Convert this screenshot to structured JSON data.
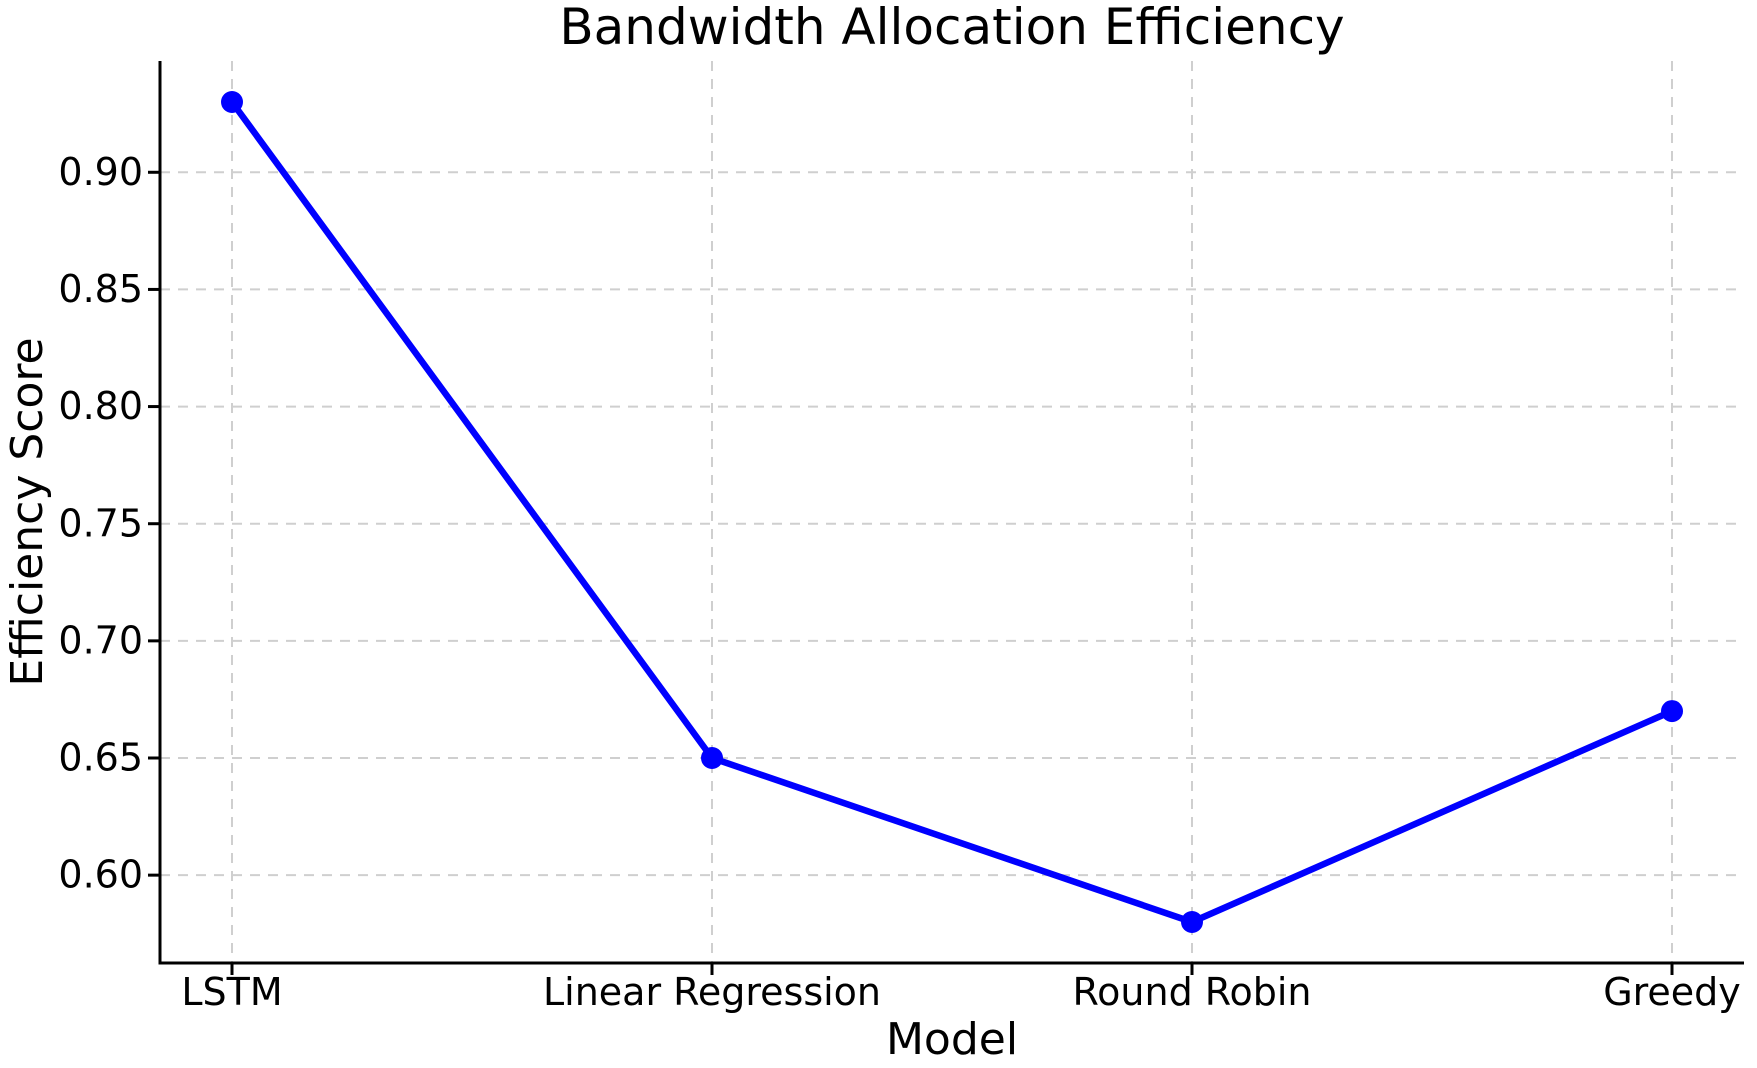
{
  "chart_data": {
    "type": "line",
    "title": "Bandwidth Allocation Efficiency",
    "xlabel": "Model",
    "ylabel": "Efficiency Score",
    "categories": [
      "LSTM",
      "Linear Regression",
      "Round Robin",
      "Greedy"
    ],
    "series": [
      {
        "name": "Efficiency Score",
        "values": [
          0.93,
          0.65,
          0.58,
          0.67
        ],
        "color": "#0000ff",
        "marker": "circle"
      }
    ],
    "ylim": [
      0.5625,
      0.9475
    ],
    "yticks": [
      0.6,
      0.65,
      0.7,
      0.75,
      0.8,
      0.85,
      0.9
    ],
    "ytick_labels": [
      "0.60",
      "0.65",
      "0.70",
      "0.75",
      "0.80",
      "0.85",
      "0.90"
    ],
    "grid": true,
    "grid_style": "dashed",
    "legend_position": "none",
    "colors": {
      "line": "#0000ff",
      "grid": "#cfcfcf",
      "spine": "#000000",
      "text": "#000000",
      "background": "#ffffff"
    }
  }
}
